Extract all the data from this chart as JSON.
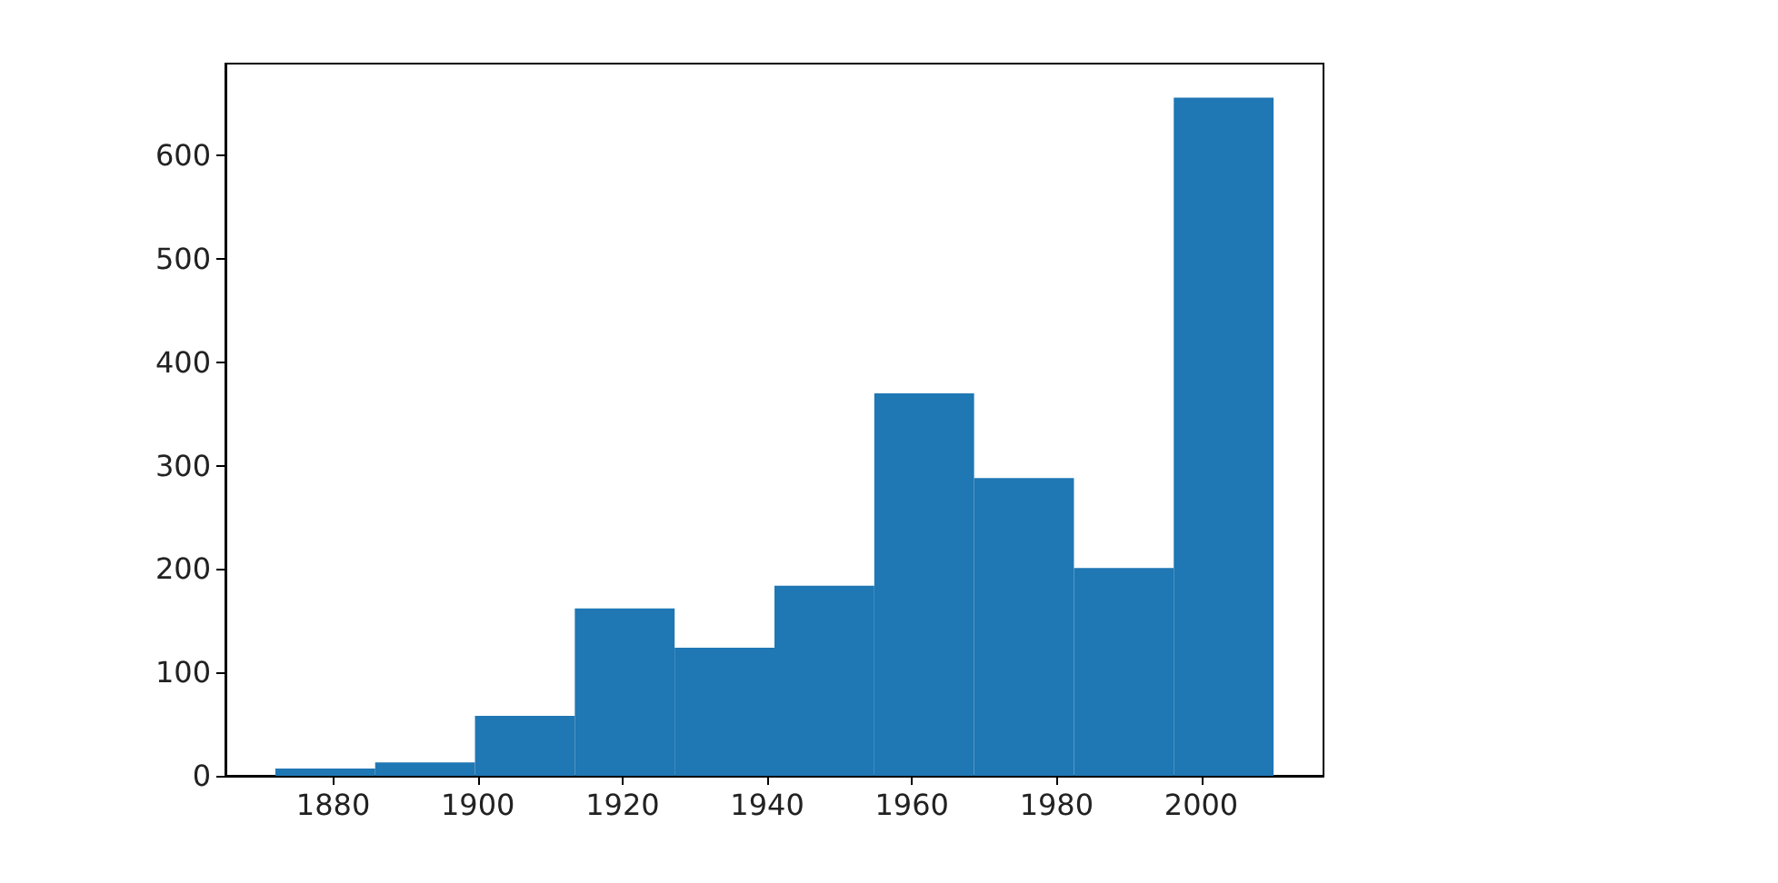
{
  "chart_data": {
    "type": "histogram",
    "bins": [
      1872,
      1885.8,
      1899.6,
      1913.4,
      1927.2,
      1941,
      1954.8,
      1968.6,
      1982.4,
      1996.2,
      2010
    ],
    "values": [
      7,
      13,
      58,
      162,
      124,
      184,
      370,
      288,
      201,
      656
    ],
    "color": "#1f77b4",
    "xlim": [
      1865.1,
      2016.9
    ],
    "xticks": [
      1880,
      1900,
      1920,
      1940,
      1960,
      1980,
      2000
    ],
    "ylim": [
      0,
      689
    ],
    "yticks": [
      0,
      100,
      200,
      300,
      400,
      500,
      600
    ]
  }
}
